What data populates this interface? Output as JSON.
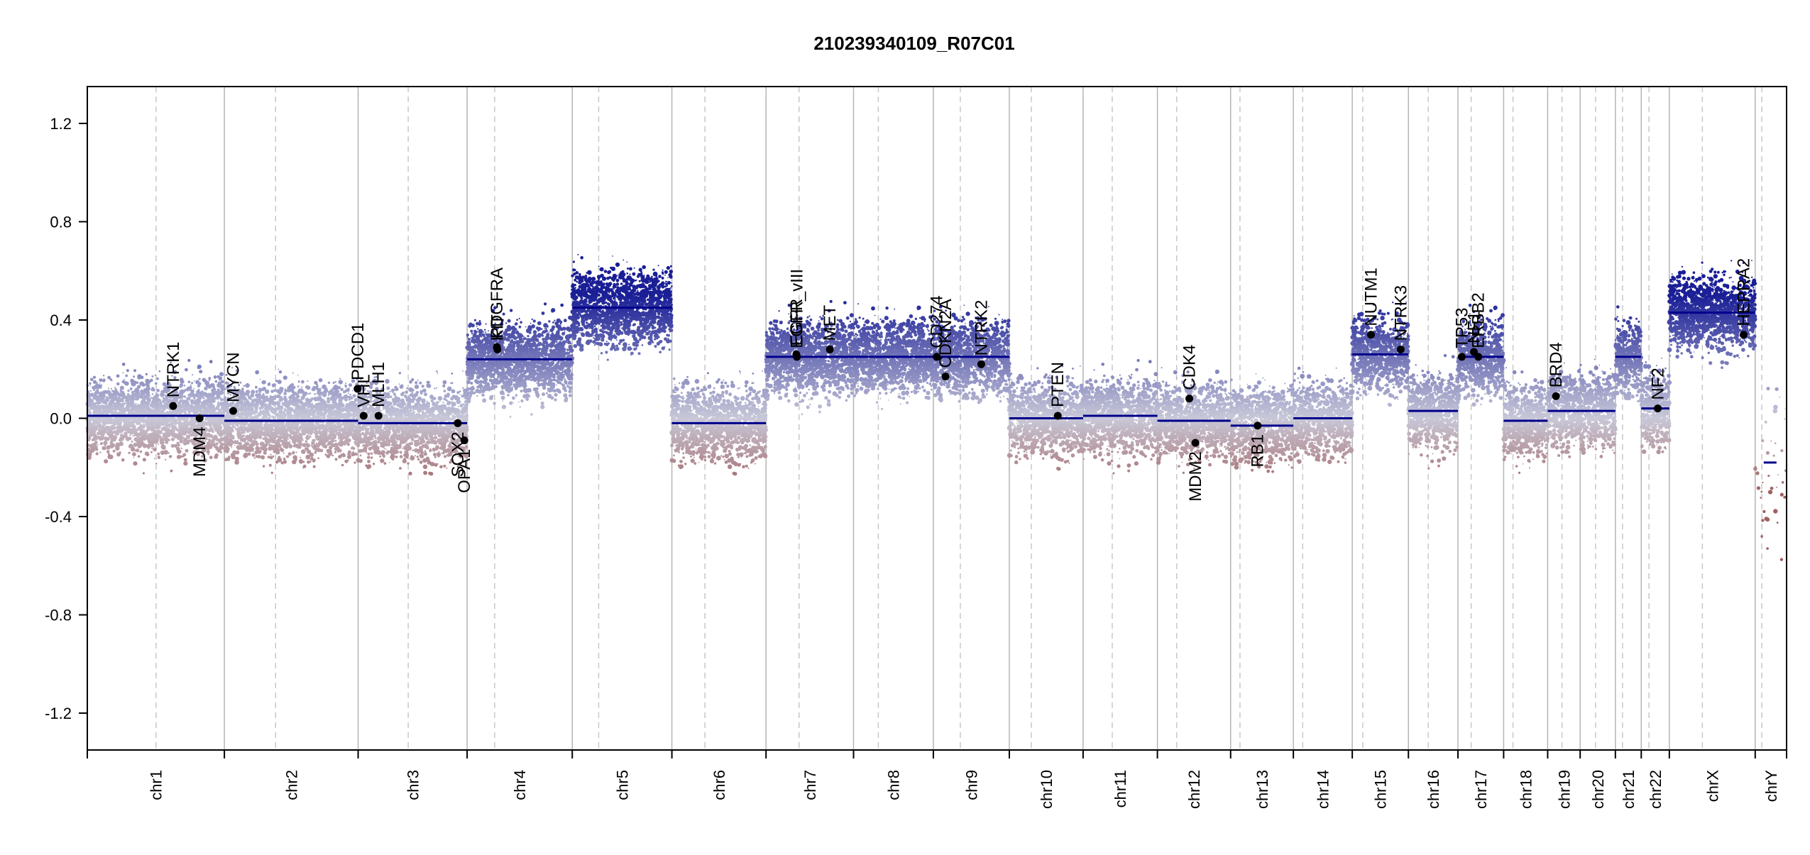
{
  "chart_data": {
    "type": "scatter",
    "title": "210239340109_R07C01",
    "xlabel": "",
    "ylabel": "",
    "ylim": [
      -1.35,
      1.35
    ],
    "yticks": [
      -1.2,
      -0.8,
      -0.4,
      0.0,
      0.4,
      0.8,
      1.2
    ],
    "ytick_labels": [
      "-1.2",
      "-0.8",
      "-0.4",
      "0.0",
      "0.4",
      "0.8",
      "1.2"
    ],
    "grid": "chromosome boundaries (solid) and centromeres (dashed)",
    "colors": {
      "gain": "#1a1f96",
      "neutral": "#c8c8d8",
      "loss": "#a06060",
      "segment": "#00008b",
      "boundary": "#b4b4b4",
      "centromere": "#c8c8c8",
      "gene_point": "#000000"
    },
    "chromosomes": [
      {
        "name": "chr1",
        "len": 249,
        "cen": 125
      },
      {
        "name": "chr2",
        "len": 243,
        "cen": 93
      },
      {
        "name": "chr3",
        "len": 198,
        "cen": 91
      },
      {
        "name": "chr4",
        "len": 191,
        "cen": 50
      },
      {
        "name": "chr5",
        "len": 181,
        "cen": 48
      },
      {
        "name": "chr6",
        "len": 171,
        "cen": 60
      },
      {
        "name": "chr7",
        "len": 159,
        "cen": 60
      },
      {
        "name": "chr8",
        "len": 145,
        "cen": 45
      },
      {
        "name": "chr9",
        "len": 138,
        "cen": 49
      },
      {
        "name": "chr10",
        "len": 134,
        "cen": 40
      },
      {
        "name": "chr11",
        "len": 135,
        "cen": 53
      },
      {
        "name": "chr12",
        "len": 133,
        "cen": 35
      },
      {
        "name": "chr13",
        "len": 114,
        "cen": 17
      },
      {
        "name": "chr14",
        "len": 107,
        "cen": 17
      },
      {
        "name": "chr15",
        "len": 102,
        "cen": 19
      },
      {
        "name": "chr16",
        "len": 90,
        "cen": 36
      },
      {
        "name": "chr17",
        "len": 83,
        "cen": 24
      },
      {
        "name": "chr18",
        "len": 80,
        "cen": 17
      },
      {
        "name": "chr19",
        "len": 59,
        "cen": 26
      },
      {
        "name": "chr20",
        "len": 64,
        "cen": 28
      },
      {
        "name": "chr21",
        "len": 47,
        "cen": 13
      },
      {
        "name": "chr22",
        "len": 51,
        "cen": 14
      },
      {
        "name": "chrX",
        "len": 156,
        "cen": 60
      },
      {
        "name": "chrY",
        "len": 57,
        "cen": 12
      }
    ],
    "segments": [
      {
        "chr": "chr1",
        "value": 0.01
      },
      {
        "chr": "chr2",
        "value": -0.01
      },
      {
        "chr": "chr3",
        "value": -0.02
      },
      {
        "chr": "chr4",
        "value": 0.24
      },
      {
        "chr": "chr5",
        "value": 0.45
      },
      {
        "chr": "chr6",
        "value": -0.02
      },
      {
        "chr": "chr7",
        "value": 0.25
      },
      {
        "chr": "chr8",
        "value": 0.25
      },
      {
        "chr": "chr9",
        "value": 0.25
      },
      {
        "chr": "chr10",
        "value": 0.0
      },
      {
        "chr": "chr11",
        "value": 0.01
      },
      {
        "chr": "chr12",
        "value": -0.01
      },
      {
        "chr": "chr13",
        "value": -0.03
      },
      {
        "chr": "chr14",
        "value": 0.0
      },
      {
        "chr": "chr15",
        "value": 0.26
      },
      {
        "chr": "chr16",
        "value": 0.03
      },
      {
        "chr": "chr17",
        "value": 0.25
      },
      {
        "chr": "chr18",
        "value": -0.01
      },
      {
        "chr": "chr19",
        "value": 0.03
      },
      {
        "chr": "chr20",
        "value": 0.03
      },
      {
        "chr": "chr21",
        "value": 0.25
      },
      {
        "chr": "chr22",
        "value": 0.04
      },
      {
        "chr": "chrX",
        "value": 0.43
      },
      {
        "chr": "chrY",
        "value": -0.18
      }
    ],
    "genes": [
      {
        "name": "NTRK1",
        "chr": "chr1",
        "pos": 156,
        "value": 0.05,
        "label": "above"
      },
      {
        "name": "MDM4",
        "chr": "chr1",
        "pos": 204,
        "value": 0.0,
        "label": "below"
      },
      {
        "name": "MYCN",
        "chr": "chr2",
        "pos": 16,
        "value": 0.03,
        "label": "above"
      },
      {
        "name": "PDCD1",
        "chr": "chr2",
        "pos": 242,
        "value": 0.12,
        "label": "above"
      },
      {
        "name": "VHL",
        "chr": "chr3",
        "pos": 10,
        "value": 0.01,
        "label": "above"
      },
      {
        "name": "MLH1",
        "chr": "chr3",
        "pos": 37,
        "value": 0.01,
        "label": "above"
      },
      {
        "name": "SOX2",
        "chr": "chr3",
        "pos": 181,
        "value": -0.02,
        "label": "below"
      },
      {
        "name": "OPA1",
        "chr": "chr3",
        "pos": 193,
        "value": -0.09,
        "label": "below"
      },
      {
        "name": "KIT",
        "chr": "chr4",
        "pos": 55,
        "value": 0.28,
        "label": "above"
      },
      {
        "name": "PDGFRA",
        "chr": "chr4",
        "pos": 54,
        "value": 0.29,
        "label": "above"
      },
      {
        "name": "EGFR",
        "chr": "chr7",
        "pos": 55,
        "value": 0.26,
        "label": "above"
      },
      {
        "name": "EGFR_vIII",
        "chr": "chr7",
        "pos": 56,
        "value": 0.25,
        "label": "above"
      },
      {
        "name": "MET",
        "chr": "chr7",
        "pos": 116,
        "value": 0.28,
        "label": "above"
      },
      {
        "name": "CD274",
        "chr": "chr9",
        "pos": 6,
        "value": 0.25,
        "label": "above"
      },
      {
        "name": "CDKN2A",
        "chr": "chr9",
        "pos": 22,
        "value": 0.17,
        "label": "above"
      },
      {
        "name": "NTRK2",
        "chr": "chr9",
        "pos": 87,
        "value": 0.22,
        "label": "above"
      },
      {
        "name": "PTEN",
        "chr": "chr10",
        "pos": 88,
        "value": 0.01,
        "label": "above"
      },
      {
        "name": "CDK4",
        "chr": "chr12",
        "pos": 58,
        "value": 0.08,
        "label": "above"
      },
      {
        "name": "MDM2",
        "chr": "chr12",
        "pos": 69,
        "value": -0.1,
        "label": "below"
      },
      {
        "name": "RB1",
        "chr": "chr13",
        "pos": 49,
        "value": -0.03,
        "label": "below"
      },
      {
        "name": "NUTM1",
        "chr": "chr15",
        "pos": 34,
        "value": 0.34,
        "label": "above"
      },
      {
        "name": "NTRK3",
        "chr": "chr15",
        "pos": 88,
        "value": 0.28,
        "label": "above"
      },
      {
        "name": "TP53",
        "chr": "chr17",
        "pos": 7,
        "value": 0.25,
        "label": "above"
      },
      {
        "name": "NF1",
        "chr": "chr17",
        "pos": 29,
        "value": 0.27,
        "label": "above"
      },
      {
        "name": "ERBB2",
        "chr": "chr17",
        "pos": 37,
        "value": 0.25,
        "label": "above"
      },
      {
        "name": "BRD4",
        "chr": "chr19",
        "pos": 15,
        "value": 0.09,
        "label": "above"
      },
      {
        "name": "NF2",
        "chr": "chr22",
        "pos": 30,
        "value": 0.04,
        "label": "above"
      },
      {
        "name": "HEPRA2",
        "chr": "chrX",
        "pos": 135,
        "value": 0.34,
        "label": "above"
      }
    ]
  }
}
